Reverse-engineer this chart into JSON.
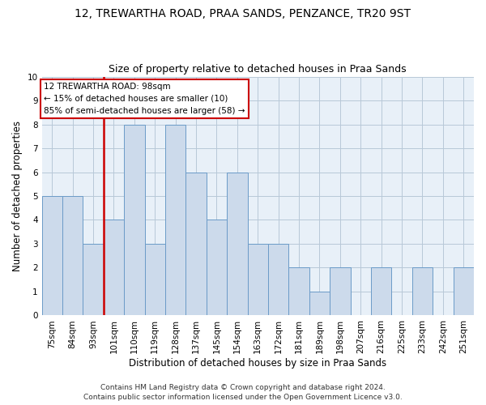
{
  "title": "12, TREWARTHA ROAD, PRAA SANDS, PENZANCE, TR20 9ST",
  "subtitle": "Size of property relative to detached houses in Praa Sands",
  "xlabel": "Distribution of detached houses by size in Praa Sands",
  "ylabel": "Number of detached properties",
  "categories": [
    "75sqm",
    "84sqm",
    "93sqm",
    "101sqm",
    "110sqm",
    "119sqm",
    "128sqm",
    "137sqm",
    "145sqm",
    "154sqm",
    "163sqm",
    "172sqm",
    "181sqm",
    "189sqm",
    "198sqm",
    "207sqm",
    "216sqm",
    "225sqm",
    "233sqm",
    "242sqm",
    "251sqm"
  ],
  "values": [
    5,
    5,
    3,
    4,
    8,
    3,
    8,
    6,
    4,
    6,
    3,
    3,
    2,
    1,
    2,
    0,
    2,
    0,
    2,
    0,
    2
  ],
  "bar_color": "#ccdaeb",
  "bar_edge_color": "#6b9bc8",
  "vline_index": 2,
  "vline_color": "#cc0000",
  "ylim": [
    0,
    10
  ],
  "yticks": [
    0,
    1,
    2,
    3,
    4,
    5,
    6,
    7,
    8,
    9,
    10
  ],
  "annotation_box_text": "12 TREWARTHA ROAD: 98sqm\n← 15% of detached houses are smaller (10)\n85% of semi-detached houses are larger (58) →",
  "box_edge_color": "#cc0000",
  "footer_line1": "Contains HM Land Registry data © Crown copyright and database right 2024.",
  "footer_line2": "Contains public sector information licensed under the Open Government Licence v3.0.",
  "title_fontsize": 10,
  "subtitle_fontsize": 9,
  "ylabel_fontsize": 8.5,
  "xlabel_fontsize": 8.5,
  "tick_fontsize": 7.5,
  "annotation_fontsize": 7.5,
  "footer_fontsize": 6.5,
  "background_color": "#ffffff",
  "axes_bg_color": "#e8f0f8",
  "grid_color": "#b8c8d8"
}
